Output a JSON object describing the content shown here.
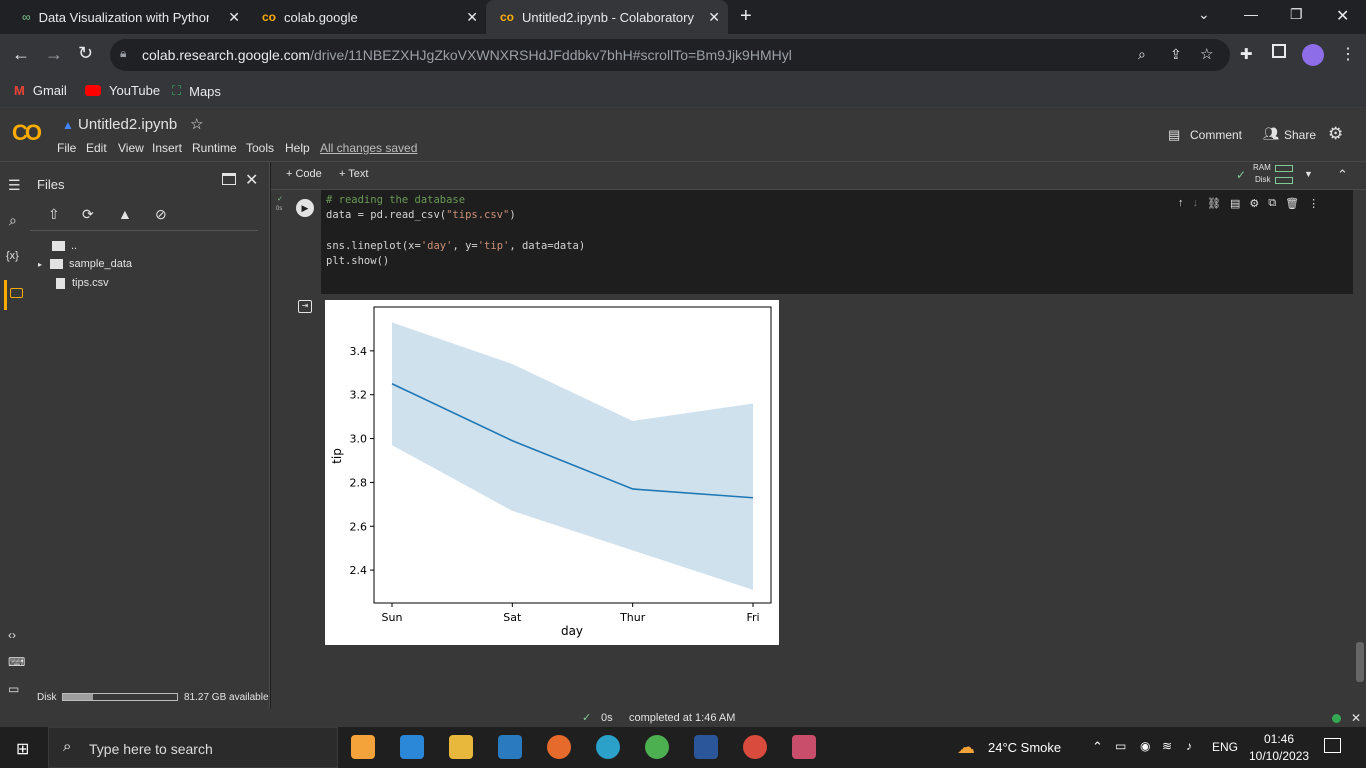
{
  "browser": {
    "tabs": [
      {
        "title": "Data Visualization with Python -",
        "active": false
      },
      {
        "title": "colab.google",
        "active": false
      },
      {
        "title": "Untitled2.ipynb - Colaboratory",
        "active": true
      }
    ],
    "new_tab": "+",
    "url_host": "colab.research.google.com",
    "url_path": "/drive/11NBEZXHJgZkoVXWNXRSHdJFddbkv7bhH#scrollTo=Bm9Jjk9HMHyl",
    "bookmarks": [
      "Gmail",
      "YouTube",
      "Maps"
    ]
  },
  "colab": {
    "logo": "CO",
    "notebook_title": "Untitled2.ipynb",
    "menus": [
      "File",
      "Edit",
      "View",
      "Insert",
      "Runtime",
      "Tools",
      "Help"
    ],
    "save_status": "All changes saved",
    "comment": "Comment",
    "share": "Share",
    "add_code": "+ Code",
    "add_text": "+ Text",
    "ram_label": "RAM",
    "disk_label": "Disk"
  },
  "sidebar": {
    "title": "Files",
    "tree": [
      "..",
      "sample_data",
      "tips.csv"
    ],
    "disk_label": "Disk",
    "disk_available": "81.27 GB available",
    "disk_used_fraction": 0.26
  },
  "cell": {
    "exec_time": "0s",
    "code_lines": [
      "# reading the database",
      "data = pd.read_csv(\"tips.csv\")",
      "",
      "sns.lineplot(x='day', y='tip', data=data)",
      "plt.show()"
    ]
  },
  "chart_data": {
    "type": "line",
    "categories": [
      "Sun",
      "Sat",
      "Thur",
      "Fri"
    ],
    "series": [
      {
        "values": [
          3.25,
          2.99,
          2.77,
          2.73
        ],
        "ci_low": [
          2.97,
          2.67,
          2.49,
          2.31
        ],
        "ci_high": [
          3.53,
          3.34,
          3.08,
          3.16
        ]
      }
    ],
    "xlabel": "day",
    "ylabel": "tip",
    "yticks": [
      2.4,
      2.6,
      2.8,
      3.0,
      3.2,
      3.4
    ],
    "ylim": [
      2.25,
      3.6
    ],
    "line_color": "#1f77b4",
    "band_color": "#c4d9ea"
  },
  "status": {
    "time": "0s",
    "text": "completed at 1:46 AM"
  },
  "taskbar": {
    "search_placeholder": "Type here to search",
    "weather": "24°C  Smoke",
    "lang": "ENG",
    "clock_time": "01:46",
    "clock_date": "10/10/2023"
  }
}
